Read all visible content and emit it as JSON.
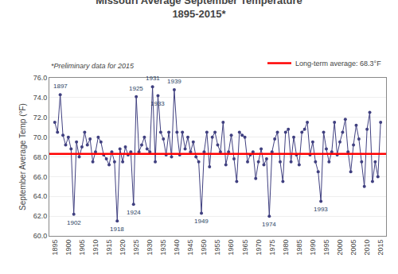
{
  "chart_data": {
    "type": "line",
    "title": "Missouri Average September Temperature",
    "subtitle": "1895-2015*",
    "y_label": "September Average Temp (°F)",
    "note": "*Preliminary data for 2015",
    "x": [
      1895,
      1896,
      1897,
      1898,
      1899,
      1900,
      1901,
      1902,
      1903,
      1904,
      1905,
      1906,
      1907,
      1908,
      1909,
      1910,
      1911,
      1912,
      1913,
      1914,
      1915,
      1916,
      1917,
      1918,
      1919,
      1920,
      1921,
      1922,
      1923,
      1924,
      1925,
      1926,
      1927,
      1928,
      1929,
      1930,
      1931,
      1932,
      1933,
      1934,
      1935,
      1936,
      1937,
      1938,
      1939,
      1940,
      1941,
      1942,
      1943,
      1944,
      1945,
      1946,
      1947,
      1948,
      1949,
      1950,
      1951,
      1952,
      1953,
      1954,
      1955,
      1956,
      1957,
      1958,
      1959,
      1960,
      1961,
      1962,
      1963,
      1964,
      1965,
      1966,
      1967,
      1968,
      1969,
      1970,
      1971,
      1972,
      1973,
      1974,
      1975,
      1976,
      1977,
      1978,
      1979,
      1980,
      1981,
      1982,
      1983,
      1984,
      1985,
      1986,
      1987,
      1988,
      1989,
      1990,
      1991,
      1992,
      1993,
      1994,
      1995,
      1996,
      1997,
      1998,
      1999,
      2000,
      2001,
      2002,
      2003,
      2004,
      2005,
      2006,
      2007,
      2008,
      2009,
      2010,
      2011,
      2012,
      2013,
      2014,
      2015
    ],
    "values": [
      71.5,
      70.5,
      74.3,
      70.2,
      69.2,
      70.0,
      68.8,
      62.2,
      69.5,
      68.0,
      69.0,
      70.5,
      69.2,
      69.8,
      67.5,
      68.5,
      70.0,
      69.5,
      68.2,
      67.8,
      67.2,
      68.5,
      67.5,
      61.5,
      68.8,
      67.5,
      69.0,
      68.2,
      68.5,
      63.2,
      74.1,
      68.5,
      69.2,
      70.0,
      68.8,
      68.5,
      75.1,
      67.5,
      74.2,
      70.5,
      69.8,
      68.2,
      70.5,
      68.0,
      74.8,
      70.5,
      68.2,
      70.5,
      68.8,
      70.0,
      68.5,
      69.5,
      68.0,
      67.5,
      62.3,
      68.5,
      70.5,
      67.0,
      70.0,
      70.5,
      69.2,
      68.5,
      71.5,
      67.2,
      68.5,
      70.2,
      67.8,
      65.5,
      70.5,
      70.2,
      70.0,
      67.5,
      68.2,
      68.5,
      65.8,
      67.5,
      68.8,
      67.2,
      67.8,
      62.0,
      68.5,
      69.8,
      70.5,
      67.5,
      65.5,
      70.5,
      70.8,
      67.5,
      70.0,
      68.2,
      67.2,
      70.5,
      70.8,
      71.5,
      68.2,
      69.5,
      67.5,
      66.5,
      63.5,
      70.5,
      68.8,
      67.5,
      68.5,
      71.5,
      68.2,
      69.5,
      70.5,
      71.8,
      68.5,
      66.5,
      69.2,
      71.2,
      69.8,
      67.5,
      65.0,
      70.8,
      72.5,
      65.5,
      67.5,
      66.0,
      71.5
    ],
    "color": "#404080",
    "marker": "circle",
    "reference_line": {
      "value": 68.3,
      "label": "Long-term average: 68.3°F",
      "color": "#FF0000"
    },
    "annotations": [
      {
        "text": "1897",
        "x": 1897,
        "y": 74.3
      },
      {
        "text": "1902",
        "x": 1902,
        "y": 62.2
      },
      {
        "text": "1918",
        "x": 1918,
        "y": 61.5
      },
      {
        "text": "1924",
        "x": 1924,
        "y": 63.2
      },
      {
        "text": "1925",
        "x": 1925,
        "y": 74.1
      },
      {
        "text": "1931",
        "x": 1931,
        "y": 75.1
      },
      {
        "text": "1933",
        "x": 1933,
        "y": 74.2
      },
      {
        "text": "1939",
        "x": 1939,
        "y": 74.8
      },
      {
        "text": "1949",
        "x": 1949,
        "y": 62.3
      },
      {
        "text": "1974",
        "x": 1974,
        "y": 62.0
      },
      {
        "text": "1993",
        "x": 1993,
        "y": 63.5
      }
    ],
    "xlim": [
      1893,
      2017
    ],
    "xticks": [
      1895,
      1900,
      1905,
      1910,
      1915,
      1920,
      1925,
      1930,
      1935,
      1940,
      1945,
      1950,
      1955,
      1960,
      1965,
      1970,
      1975,
      1980,
      1985,
      1990,
      1995,
      2000,
      2005,
      2010,
      2015
    ],
    "ylim": [
      60.0,
      76.0
    ],
    "yticks": [
      {
        "value": 60,
        "label": "60.0"
      },
      {
        "value": 62,
        "label": "62.0"
      },
      {
        "value": 64,
        "label": "64.0"
      },
      {
        "value": 66,
        "label": "66.0"
      },
      {
        "value": 68,
        "label": "68.0"
      },
      {
        "value": 70,
        "label": "70.0"
      },
      {
        "value": 72,
        "label": "72.0"
      },
      {
        "value": 74,
        "label": "74.0"
      },
      {
        "value": 76,
        "label": "76.0"
      }
    ],
    "grid": true,
    "legend": "upper right"
  }
}
